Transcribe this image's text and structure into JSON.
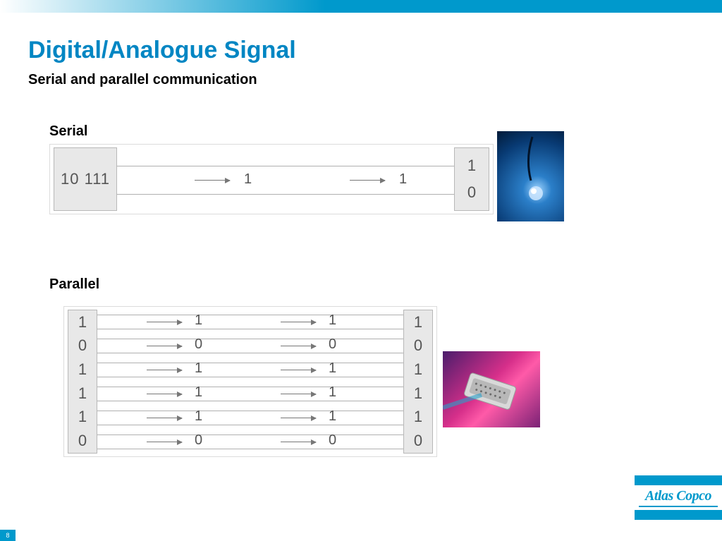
{
  "colors": {
    "brand_blue": "#0099cc",
    "title_blue": "#0086c3",
    "gradient_start": "#ffffff",
    "gradient_end": "#0099cc",
    "box_bg": "#e8e8e8",
    "box_border": "#b8b8b8",
    "wire_color": "#b0b0b0",
    "text_gray": "#555555",
    "photo1_bg": "#0a4d8c",
    "photo2_bg": "#c02080"
  },
  "header": {
    "title": "Digital/Analogue Signal",
    "subtitle": "Serial and parallel communication"
  },
  "serial": {
    "label": "Serial",
    "source_text": "10 111",
    "dest_bits": [
      "1",
      "0"
    ],
    "wire_bits": [
      {
        "col": 1,
        "value": "1"
      },
      {
        "col": 2,
        "value": "1"
      }
    ]
  },
  "parallel": {
    "label": "Parallel",
    "source_bits": [
      "1",
      "0",
      "1",
      "1",
      "1",
      "0"
    ],
    "dest_bits": [
      "1",
      "0",
      "1",
      "1",
      "1",
      "0"
    ],
    "mid_columns": [
      [
        "1",
        "0",
        "1",
        "1",
        "1",
        "0"
      ],
      [
        "1",
        "0",
        "1",
        "1",
        "1",
        "0"
      ]
    ]
  },
  "logo": {
    "text": "Atlas Copco"
  },
  "page_number": "8"
}
